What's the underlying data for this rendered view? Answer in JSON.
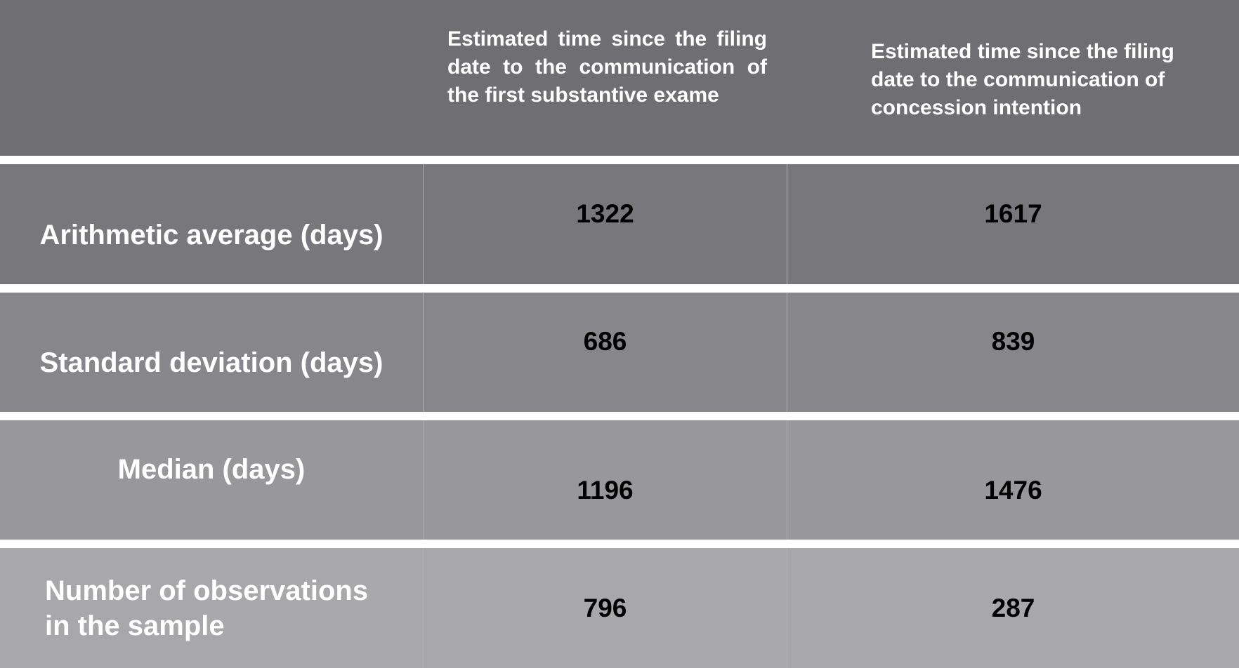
{
  "header": {
    "col1": "",
    "col2": "Estimated time since the filing date to the communication of the first substantive exame",
    "col3": "Estimated time since the filing date to the communication of concession intention"
  },
  "rows": [
    {
      "label": "Arithmetic average (days)",
      "col2": "1322",
      "col3": "1617"
    },
    {
      "label": "Standard deviation (days)",
      "col2": "686",
      "col3": "839"
    },
    {
      "label": "Median (days)",
      "col2": "1196",
      "col3": "1476"
    },
    {
      "label": "Number of observations in the sample",
      "col2": "796",
      "col3": "287"
    }
  ],
  "colors": {
    "header": "#6f6e73",
    "row1": "#78777c",
    "row2": "#87868b",
    "row3": "#98989a",
    "row4": "#a8a8aa"
  }
}
